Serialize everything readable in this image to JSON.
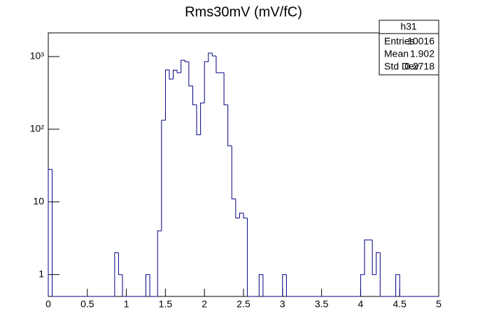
{
  "chart_data": {
    "type": "histogram",
    "title": "Rms30mV (mV/fC)",
    "color": "#000080",
    "log_y": true,
    "grid": false,
    "bins": [
      0,
      0.05,
      0.1,
      0.15,
      0.2,
      0.25,
      0.3,
      0.35,
      0.4,
      0.45,
      0.5,
      0.55,
      0.6,
      0.65,
      0.7,
      0.75,
      0.8,
      0.85,
      0.9,
      0.95,
      1,
      1.05,
      1.1,
      1.15,
      1.2,
      1.25,
      1.3,
      1.35,
      1.4,
      1.45,
      1.5,
      1.55,
      1.6,
      1.65,
      1.7,
      1.75,
      1.8,
      1.85,
      1.9,
      1.95,
      2,
      2.05,
      2.1,
      2.15,
      2.2,
      2.25,
      2.3,
      2.35,
      2.4,
      2.45,
      2.5,
      2.55,
      2.6,
      2.65,
      2.7,
      2.75,
      2.8,
      2.85,
      2.9,
      2.95,
      3,
      3.05,
      3.1,
      3.15,
      3.2,
      3.25,
      3.3,
      3.35,
      3.4,
      3.45,
      3.5,
      3.55,
      3.6,
      3.65,
      3.7,
      3.75,
      3.8,
      3.85,
      3.9,
      3.95,
      4,
      4.05,
      4.1,
      4.15,
      4.2,
      4.25,
      4.3,
      4.35,
      4.4,
      4.45,
      4.5,
      4.55,
      4.6,
      4.65,
      4.7,
      4.75,
      4.8,
      4.85,
      4.9,
      4.95,
      5
    ],
    "values": [
      28,
      0,
      0,
      0,
      0,
      0,
      0,
      0,
      0,
      0,
      0,
      0,
      0,
      0,
      0,
      0,
      0,
      2,
      1,
      0,
      0,
      0,
      0,
      0,
      0,
      1,
      0,
      0,
      4,
      133,
      656,
      490,
      650,
      600,
      890,
      850,
      395,
      217,
      84,
      230,
      850,
      1115,
      1020,
      600,
      600,
      217,
      59,
      11,
      6,
      7,
      6,
      0,
      0,
      0,
      1,
      0,
      0,
      0,
      0,
      0,
      1,
      0,
      0,
      0,
      0,
      0,
      0,
      0,
      0,
      0,
      0,
      0,
      0,
      0,
      0,
      0,
      0,
      0,
      0,
      0,
      1,
      3,
      3,
      1,
      2,
      0,
      0,
      0,
      0,
      1,
      0,
      0,
      0,
      0,
      0,
      0,
      0,
      0,
      0,
      0
    ],
    "xlim": [
      0,
      5
    ],
    "xticks": [
      0,
      0.5,
      1,
      1.5,
      2,
      2.5,
      3,
      3.5,
      4,
      4.5,
      5
    ],
    "ylim": [
      0.5,
      2120
    ],
    "yticks": [
      1,
      10,
      {
        "value": 100,
        "label": "10²"
      },
      {
        "value": 1000,
        "label": "10³"
      }
    ],
    "stats": {
      "name": "h31",
      "rows": [
        {
          "label": "Entries",
          "value": 10016
        },
        {
          "label": "Mean",
          "value": 1.902
        },
        {
          "label": "Std Dev",
          "value": 0.2718
        }
      ]
    }
  }
}
